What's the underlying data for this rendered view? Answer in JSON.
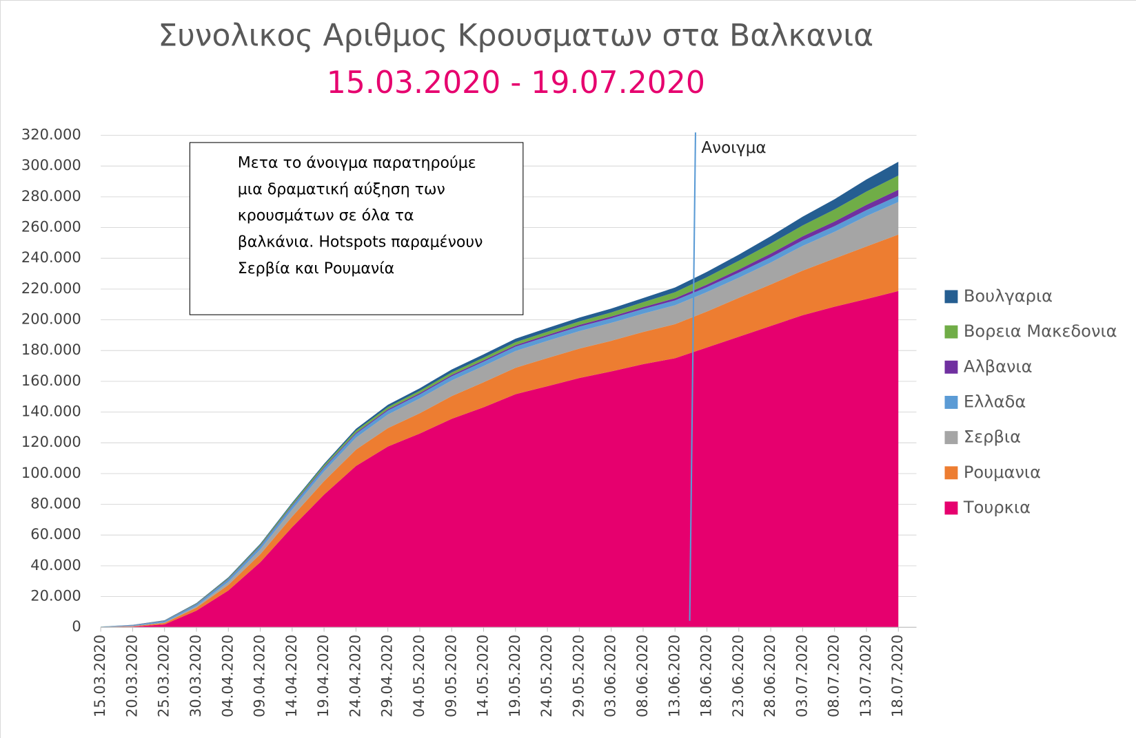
{
  "chart_data": {
    "type": "stacked_area",
    "title": "Συνολικος Αριθμος Κρουσματων στα Βαλκανια",
    "subtitle": "15.03.2020 - 19.07.2020",
    "annotation": {
      "label": "Ανοιγμα"
    },
    "note_lines": [
      "Μετα  το άνοιγμα παρατηρούμε",
      "μια δραματική αύξηση των",
      "κρουσμάτων σε όλα τα",
      "βαλκάνια. Hotspots παραμένουν",
      "Σερβία και Ρουμανία"
    ],
    "categories": [
      "15.03.2020",
      "20.03.2020",
      "25.03.2020",
      "30.03.2020",
      "04.04.2020",
      "09.04.2020",
      "14.04.2020",
      "19.04.2020",
      "24.04.2020",
      "29.04.2020",
      "04.05.2020",
      "09.05.2020",
      "14.05.2020",
      "19.05.2020",
      "24.05.2020",
      "29.05.2020",
      "03.06.2020",
      "08.06.2020",
      "13.06.2020",
      "18.06.2020",
      "23.06.2020",
      "28.06.2020",
      "03.07.2020",
      "08.07.2020",
      "13.07.2020",
      "18.07.2020"
    ],
    "series": [
      {
        "name": "Τουρκια",
        "color": "#e6006e",
        "values": [
          6,
          400,
          1900,
          10827,
          23934,
          42282,
          65111,
          86306,
          104912,
          117589,
          126045,
          135569,
          143114,
          151615,
          156827,
          162120,
          166422,
          171121,
          175000,
          182000,
          189000,
          196000,
          203000,
          208500,
          213500,
          218717
        ]
      },
      {
        "name": "Ρουμανια",
        "color": "#ed7d31",
        "values": [
          131,
          308,
          906,
          1952,
          3613,
          5202,
          6879,
          8746,
          10635,
          11978,
          13163,
          14811,
          16247,
          17191,
          18283,
          19133,
          19907,
          20945,
          22165,
          23400,
          25286,
          26970,
          28973,
          31381,
          34226,
          36691
        ]
      },
      {
        "name": "Σερβια",
        "color": "#a5a5a5",
        "values": [
          48,
          135,
          384,
          900,
          1908,
          3105,
          4630,
          6318,
          7779,
          8824,
          9677,
          10176,
          10610,
          10919,
          11193,
          11381,
          11667,
          11896,
          12310,
          12616,
          13092,
          14288,
          16131,
          17342,
          19717,
          21253
        ]
      },
      {
        "name": "Ελλαδα",
        "color": "#5b9bd5",
        "values": [
          228,
          495,
          821,
          1212,
          1673,
          1955,
          2170,
          2235,
          2490,
          2591,
          2626,
          2710,
          2760,
          2840,
          2876,
          2915,
          2980,
          3058,
          3121,
          3203,
          3302,
          3409,
          3519,
          3672,
          3883,
          4007
        ]
      },
      {
        "name": "Αλβανια",
        "color": "#7030a0",
        "values": [
          38,
          70,
          146,
          223,
          333,
          409,
          475,
          562,
          678,
          766,
          803,
          850,
          898,
          949,
          998,
          1099,
          1164,
          1246,
          1416,
          1672,
          2047,
          2402,
          2662,
          3038,
          3454,
          3906
        ]
      },
      {
        "name": "Βορεια Μακεδονια",
        "color": "#70ad47",
        "values": [
          7,
          85,
          177,
          285,
          555,
          711,
          1081,
          1231,
          1386,
          1465,
          1539,
          1642,
          1762,
          1921,
          2039,
          2315,
          2611,
          3152,
          3895,
          4820,
          5699,
          6470,
          7046,
          7820,
          8623,
          9249
        ]
      },
      {
        "name": "Βουλγαρια",
        "color": "#255e91",
        "values": [
          51,
          127,
          242,
          359,
          503,
          635,
          747,
          915,
          1247,
          1485,
          1618,
          1921,
          2138,
          2292,
          2408,
          2477,
          2560,
          2727,
          3086,
          3453,
          3984,
          4831,
          5738,
          6672,
          7882,
          8929
        ]
      }
    ],
    "ylim": [
      0,
      320000
    ],
    "yticks": [
      0,
      {
        "value": 20000,
        "label": "20.000"
      },
      {
        "value": 40000,
        "label": "40.000"
      },
      {
        "value": 60000,
        "label": "60.000"
      },
      {
        "value": 80000,
        "label": "80.000"
      },
      {
        "value": 100000,
        "label": "100.000"
      },
      {
        "value": 120000,
        "label": "120.000"
      },
      {
        "value": 140000,
        "label": "140.000"
      },
      {
        "value": 160000,
        "label": "160.000"
      },
      {
        "value": 180000,
        "label": "180.000"
      },
      {
        "value": 200000,
        "label": "200.000"
      },
      {
        "value": 220000,
        "label": "220.000"
      },
      {
        "value": 240000,
        "label": "240.000"
      },
      {
        "value": 260000,
        "label": "260.000"
      },
      {
        "value": 280000,
        "label": "280.000"
      },
      {
        "value": 300000,
        "label": "300.000"
      },
      {
        "value": 320000,
        "label": "320.000"
      }
    ],
    "grid": true,
    "legend": "right"
  }
}
